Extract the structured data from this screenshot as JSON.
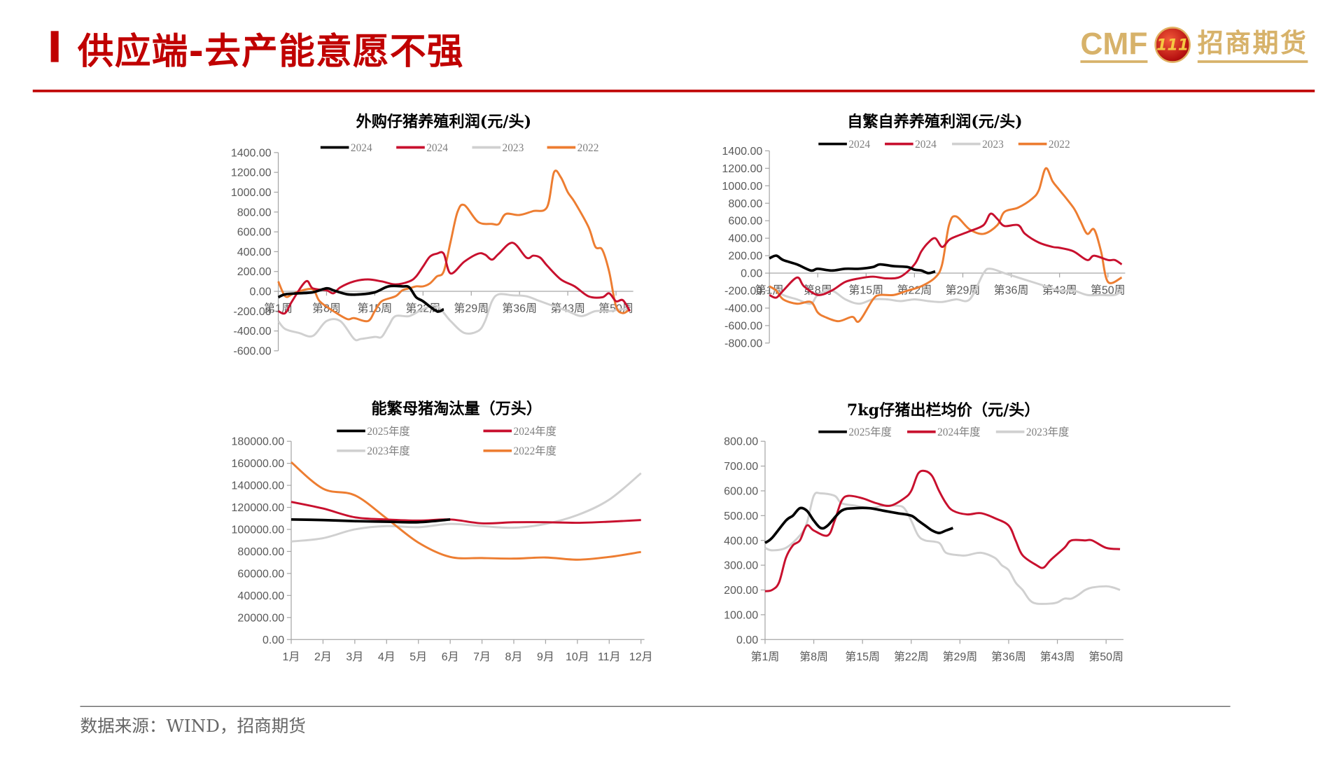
{
  "header": {
    "title": "供应端-去产能意愿不强",
    "logo_text": "CMF",
    "logo_cn": "招商期货",
    "logo_badge": "111"
  },
  "footer": {
    "source": "数据来源：WIND，招商期货"
  },
  "colors": {
    "accent": "#c00000",
    "black": "#000000",
    "red": "#c8102e",
    "gray": "#d0d0d0",
    "orange": "#ed7d31",
    "logo_gold": "#d7b26a"
  },
  "chart_data": [
    {
      "type": "line",
      "title": "外购仔猪养殖利润(元/头)",
      "ylim": [
        -600,
        1400
      ],
      "yticks": [
        -600,
        -400,
        -200,
        0,
        200,
        400,
        600,
        800,
        1000,
        1200,
        1400
      ],
      "ytick_labels": [
        "-600.00",
        "-400.00",
        "-200.00",
        "0.00",
        "200.00",
        "400.00",
        "600.00",
        "800.00",
        "1000.00",
        "1200.00",
        "1400.00"
      ],
      "xlim": [
        1,
        52
      ],
      "xticks": [
        1,
        8,
        15,
        22,
        29,
        36,
        43,
        50
      ],
      "xtick_labels": [
        "第1周",
        "第8周",
        "第15周",
        "第22周",
        "第29周",
        "第36周",
        "第43周",
        "第50周"
      ],
      "legend": "top",
      "series": [
        {
          "name": "2024",
          "color": "#000000",
          "x": [
            1,
            2,
            4,
            6,
            8,
            9,
            11,
            13,
            15,
            17,
            19,
            20,
            21,
            22,
            24,
            25
          ],
          "y": [
            -60,
            -30,
            -20,
            -10,
            30,
            10,
            -30,
            -30,
            -10,
            50,
            50,
            40,
            -60,
            -100,
            -200,
            -180
          ]
        },
        {
          "name": "2024",
          "color": "#c8102e",
          "x": [
            1,
            2,
            3,
            5,
            6,
            8,
            9,
            10,
            12,
            14,
            16,
            18,
            20,
            21,
            22,
            23,
            24,
            25,
            26,
            28,
            30,
            31,
            32,
            33,
            35,
            37,
            38,
            39,
            40,
            42,
            44,
            46,
            48,
            49,
            50,
            51,
            52
          ],
          "y": [
            -200,
            -220,
            -100,
            100,
            30,
            10,
            -20,
            40,
            100,
            120,
            100,
            70,
            100,
            150,
            250,
            350,
            380,
            380,
            180,
            300,
            380,
            370,
            320,
            380,
            490,
            340,
            360,
            340,
            260,
            120,
            50,
            -50,
            -60,
            -20,
            -100,
            -90,
            -200
          ]
        },
        {
          "name": "2023",
          "color": "#d0d0d0",
          "x": [
            1,
            2,
            4,
            6,
            8,
            10,
            12,
            13,
            15,
            16,
            17,
            18,
            20,
            22,
            24,
            26,
            28,
            30,
            31,
            32,
            33,
            35,
            37,
            39,
            41,
            43,
            45,
            47,
            49,
            51,
            52
          ],
          "y": [
            -300,
            -380,
            -420,
            -450,
            -300,
            -300,
            -480,
            -480,
            -460,
            -460,
            -350,
            -250,
            -250,
            -180,
            -150,
            -300,
            -420,
            -400,
            -300,
            -100,
            -30,
            -40,
            -50,
            -100,
            -150,
            -200,
            -250,
            -200,
            -200,
            -180,
            -200
          ]
        },
        {
          "name": "2022",
          "color": "#ed7d31",
          "x": [
            1,
            2,
            3,
            4,
            6,
            7,
            9,
            11,
            12,
            14,
            15,
            16,
            18,
            19,
            20,
            21,
            22,
            23,
            24,
            25,
            26,
            27,
            28,
            30,
            32,
            33,
            34,
            36,
            38,
            40,
            41,
            42,
            43,
            44,
            46,
            47,
            48,
            49,
            50,
            51,
            52
          ],
          "y": [
            100,
            -50,
            -30,
            0,
            20,
            -100,
            -200,
            -280,
            -270,
            -300,
            -200,
            -100,
            -50,
            10,
            30,
            50,
            50,
            80,
            150,
            200,
            500,
            800,
            870,
            700,
            680,
            680,
            780,
            770,
            810,
            850,
            1200,
            1150,
            1000,
            900,
            650,
            450,
            420,
            200,
            -150,
            -220,
            -180
          ]
        }
      ]
    },
    {
      "type": "line",
      "title": "自繁自养养殖利润(元/头)",
      "ylim": [
        -800,
        1400
      ],
      "yticks": [
        -800,
        -600,
        -400,
        -200,
        0,
        200,
        400,
        600,
        800,
        1000,
        1200,
        1400
      ],
      "ytick_labels": [
        "-800.00",
        "-600.00",
        "-400.00",
        "-200.00",
        "0.00",
        "200.00",
        "400.00",
        "600.00",
        "800.00",
        "1000.00",
        "1200.00",
        "1400.00"
      ],
      "xlim": [
        1,
        52
      ],
      "xticks": [
        1,
        8,
        15,
        22,
        29,
        36,
        43,
        50
      ],
      "xtick_labels": [
        "第1周",
        "第8周",
        "第15周",
        "第22周",
        "第29周",
        "第36周",
        "第43周",
        "第50周"
      ],
      "legend": "top",
      "series": [
        {
          "name": "2024",
          "color": "#000000",
          "x": [
            1,
            2,
            3,
            5,
            7,
            8,
            10,
            12,
            14,
            16,
            17,
            19,
            21,
            22,
            23,
            24,
            25
          ],
          "y": [
            170,
            200,
            150,
            100,
            30,
            50,
            30,
            50,
            50,
            70,
            100,
            80,
            70,
            40,
            30,
            0,
            20
          ]
        },
        {
          "name": "2024",
          "color": "#c8102e",
          "x": [
            1,
            2,
            3,
            5,
            6,
            8,
            10,
            12,
            14,
            16,
            18,
            20,
            22,
            23,
            24,
            25,
            26,
            27,
            28,
            30,
            32,
            33,
            34,
            35,
            37,
            38,
            40,
            42,
            43,
            45,
            47,
            48,
            50,
            51,
            52
          ],
          "y": [
            -250,
            -280,
            -200,
            -50,
            -150,
            -250,
            -200,
            -100,
            -60,
            -40,
            -60,
            -40,
            100,
            250,
            350,
            400,
            300,
            380,
            420,
            480,
            550,
            680,
            620,
            540,
            550,
            450,
            350,
            300,
            290,
            250,
            150,
            200,
            150,
            150,
            100
          ]
        },
        {
          "name": "2023",
          "color": "#d0d0d0",
          "x": [
            1,
            3,
            5,
            7,
            8,
            10,
            12,
            14,
            16,
            18,
            20,
            22,
            24,
            26,
            28,
            30,
            32,
            33,
            35,
            37,
            39,
            41,
            43,
            45,
            47,
            49,
            51,
            52
          ],
          "y": [
            -150,
            -250,
            -300,
            -350,
            -250,
            -200,
            -300,
            -350,
            -300,
            -300,
            -320,
            -300,
            -320,
            -330,
            -300,
            -300,
            0,
            50,
            0,
            -50,
            -100,
            -150,
            -200,
            -200,
            -250,
            -250,
            -250,
            -200
          ]
        },
        {
          "name": "2022",
          "color": "#ed7d31",
          "x": [
            1,
            2,
            3,
            5,
            7,
            8,
            9,
            11,
            13,
            14,
            16,
            17,
            19,
            21,
            23,
            25,
            26,
            27,
            28,
            30,
            32,
            34,
            35,
            37,
            39,
            40,
            41,
            42,
            43,
            45,
            46,
            47,
            48,
            49,
            50,
            52
          ],
          "y": [
            -150,
            -200,
            -300,
            -350,
            -330,
            -450,
            -500,
            -550,
            -500,
            -550,
            -300,
            -250,
            -250,
            -200,
            -150,
            -50,
            100,
            550,
            650,
            500,
            450,
            550,
            700,
            750,
            850,
            950,
            1200,
            1050,
            950,
            750,
            600,
            450,
            500,
            250,
            -100,
            -50
          ]
        }
      ]
    },
    {
      "type": "line",
      "title": "能繁母猪淘汰量（万头）",
      "ylim": [
        0,
        180000
      ],
      "yticks": [
        0,
        20000,
        40000,
        60000,
        80000,
        100000,
        120000,
        140000,
        160000,
        180000
      ],
      "ytick_labels": [
        "0.00",
        "20000.00",
        "40000.00",
        "60000.00",
        "80000.00",
        "100000.00",
        "120000.00",
        "140000.00",
        "160000.00",
        "180000.00"
      ],
      "xlim": [
        1,
        12
      ],
      "xticks": [
        1,
        2,
        3,
        4,
        5,
        6,
        7,
        8,
        9,
        10,
        11,
        12
      ],
      "xtick_labels": [
        "1月",
        "2月",
        "3月",
        "4月",
        "5月",
        "6月",
        "7月",
        "8月",
        "9月",
        "10月",
        "11月",
        "12月"
      ],
      "legend": "top-2row",
      "series": [
        {
          "name": "2025年度",
          "color": "#000000",
          "x": [
            1,
            2,
            3,
            4,
            5,
            6
          ],
          "y": [
            109000,
            108500,
            107500,
            107000,
            106500,
            109000
          ]
        },
        {
          "name": "2024年度",
          "color": "#c8102e",
          "x": [
            1,
            2,
            3,
            4,
            5,
            6,
            7,
            8,
            9,
            10,
            11,
            12
          ],
          "y": [
            125000,
            119000,
            111000,
            109000,
            108000,
            109000,
            105500,
            106500,
            106500,
            106000,
            107000,
            108500
          ]
        },
        {
          "name": "2023年度",
          "color": "#d0d0d0",
          "x": [
            1,
            2,
            3,
            4,
            5,
            6,
            7,
            8,
            9,
            10,
            11,
            12
          ],
          "y": [
            89000,
            92000,
            100000,
            103000,
            102000,
            105000,
            103000,
            101500,
            105000,
            113000,
            127000,
            151000
          ]
        },
        {
          "name": "2022年度",
          "color": "#ed7d31",
          "x": [
            1,
            2,
            3,
            4,
            5,
            6,
            7,
            8,
            9,
            10,
            11,
            12
          ],
          "y": [
            161000,
            137000,
            131000,
            110000,
            88000,
            75000,
            74000,
            73500,
            74500,
            72500,
            75000,
            79500
          ]
        }
      ]
    },
    {
      "type": "line",
      "title": "7kg仔猪出栏均价（元/头）",
      "ylim": [
        0,
        800
      ],
      "yticks": [
        0,
        100,
        200,
        300,
        400,
        500,
        600,
        700,
        800
      ],
      "ytick_labels": [
        "0.00",
        "100.00",
        "200.00",
        "300.00",
        "400.00",
        "500.00",
        "600.00",
        "700.00",
        "800.00"
      ],
      "xlim": [
        1,
        52
      ],
      "xticks": [
        1,
        8,
        15,
        22,
        29,
        36,
        43,
        50
      ],
      "xtick_labels": [
        "第1周",
        "第8周",
        "第15周",
        "第22周",
        "第29周",
        "第36周",
        "第43周",
        "第50周"
      ],
      "legend": "top",
      "series": [
        {
          "name": "2025年度",
          "color": "#000000",
          "x": [
            1,
            2,
            4,
            5,
            6,
            7,
            8,
            9,
            10,
            12,
            14,
            16,
            18,
            20,
            22,
            23,
            24,
            25,
            26,
            27,
            28
          ],
          "y": [
            390,
            410,
            480,
            500,
            530,
            520,
            480,
            450,
            460,
            520,
            530,
            530,
            520,
            510,
            500,
            480,
            460,
            440,
            430,
            440,
            450
          ]
        },
        {
          "name": "2024年度",
          "color": "#c8102e",
          "x": [
            1,
            2,
            3,
            4,
            5,
            6,
            7,
            8,
            10,
            11,
            12,
            13,
            15,
            17,
            19,
            21,
            22,
            23,
            24,
            25,
            26,
            27,
            28,
            30,
            32,
            34,
            36,
            37,
            38,
            40,
            41,
            42,
            44,
            45,
            47,
            48,
            50,
            52
          ],
          "y": [
            195,
            200,
            230,
            330,
            380,
            400,
            460,
            440,
            420,
            480,
            560,
            580,
            570,
            550,
            540,
            570,
            600,
            670,
            680,
            660,
            600,
            550,
            520,
            505,
            510,
            490,
            460,
            400,
            340,
            300,
            290,
            320,
            370,
            400,
            400,
            400,
            370,
            365
          ]
        },
        {
          "name": "2023年度",
          "color": "#d0d0d0",
          "x": [
            1,
            2,
            4,
            6,
            7,
            8,
            9,
            11,
            12,
            14,
            16,
            18,
            20,
            21,
            22,
            23,
            24,
            26,
            27,
            29,
            30,
            32,
            34,
            35,
            36,
            37,
            38,
            39,
            40,
            42,
            43,
            44,
            45,
            46,
            47,
            48,
            50,
            51,
            52
          ],
          "y": [
            370,
            360,
            370,
            420,
            470,
            580,
            590,
            580,
            550,
            540,
            530,
            540,
            540,
            530,
            480,
            420,
            400,
            390,
            350,
            340,
            340,
            350,
            330,
            300,
            280,
            230,
            200,
            160,
            145,
            145,
            150,
            165,
            165,
            180,
            200,
            210,
            215,
            210,
            200
          ]
        }
      ]
    }
  ]
}
